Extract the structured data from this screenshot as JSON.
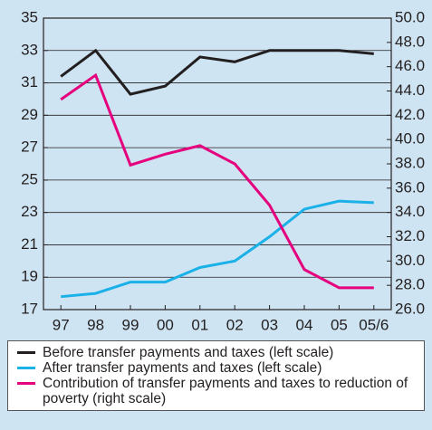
{
  "chart_data": {
    "type": "line",
    "categories": [
      "97",
      "98",
      "99",
      "00",
      "01",
      "02",
      "03",
      "04",
      "05",
      "05/6"
    ],
    "series": [
      {
        "name": "Before transfer payments and taxes (left scale)",
        "color": "#231f20",
        "values": [
          31.4,
          33.0,
          30.3,
          30.8,
          32.6,
          32.3,
          33.0,
          33.0,
          33.0,
          32.8
        ]
      },
      {
        "name": "After transfer payments and taxes (left scale)",
        "color": "#1ab0e8",
        "values": [
          17.8,
          18.0,
          18.7,
          18.7,
          19.6,
          20.0,
          21.5,
          23.2,
          23.7,
          23.6
        ]
      },
      {
        "name": "Contribution of transfer payments and taxes to reduction of poverty (right scale)",
        "color": "#e5007e",
        "axis": "y2",
        "values": [
          43.3,
          45.3,
          37.9,
          38.8,
          39.5,
          38.0,
          34.6,
          29.3,
          27.8,
          27.8
        ]
      }
    ],
    "ylim": [
      17,
      35
    ],
    "yticks": [
      17,
      19,
      21,
      23,
      25,
      27,
      29,
      31,
      33,
      35
    ],
    "y2lim": [
      26,
      50
    ],
    "y2ticks": [
      {
        "value": 26,
        "label": "26.0"
      },
      {
        "value": 28,
        "label": "28.0"
      },
      {
        "value": 30,
        "label": "30.0"
      },
      {
        "value": 32,
        "label": "32.0"
      },
      {
        "value": 34,
        "label": "34.0"
      },
      {
        "value": 36,
        "label": "36.0"
      },
      {
        "value": 38,
        "label": "38.0"
      },
      {
        "value": 40,
        "label": "40.0"
      },
      {
        "value": 42,
        "label": "42.0"
      },
      {
        "value": 44,
        "label": "44.0"
      },
      {
        "value": 46,
        "label": "46.0"
      },
      {
        "value": 48,
        "label": "48.0"
      },
      {
        "value": 50,
        "label": "50.0"
      }
    ],
    "grid": true
  }
}
